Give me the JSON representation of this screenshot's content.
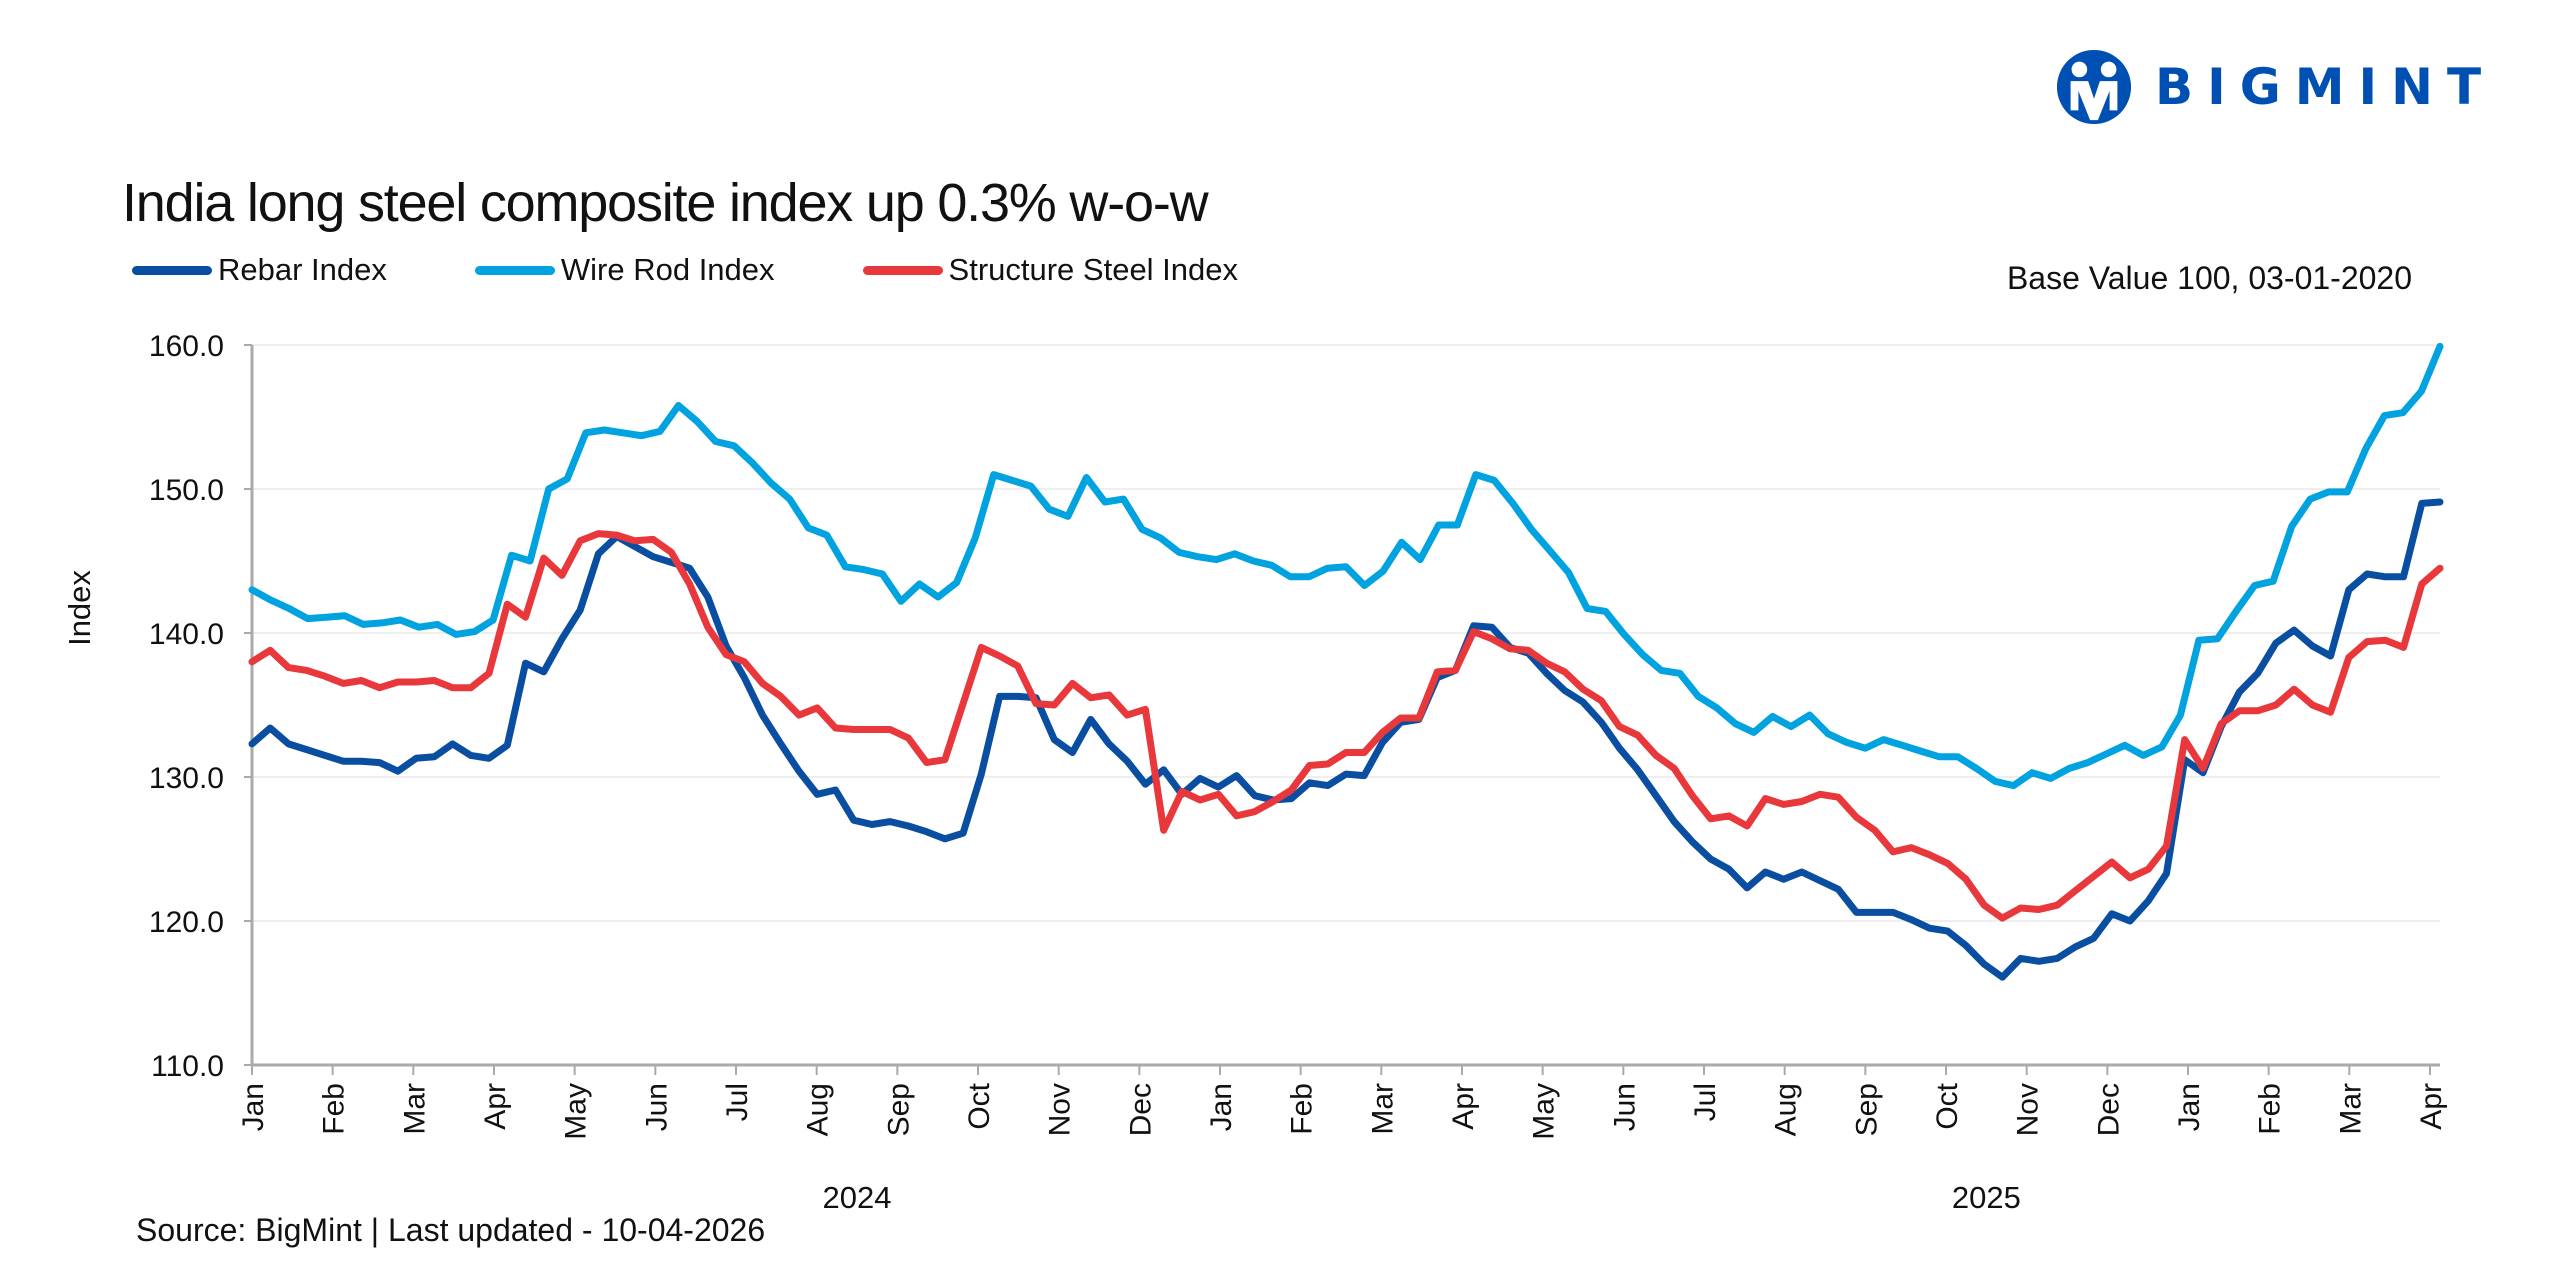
{
  "brand": {
    "name": "BIGMINT",
    "color": "#0050b3",
    "logo_icon": "bigmint-people-logo-icon"
  },
  "header": {
    "title": "India long steel composite index up 0.3% w-o-w",
    "base_note": "Base Value 100, 03-01-2020"
  },
  "footer": {
    "source": "Source: BigMint | Last updated - 10-04-2026"
  },
  "chart_data": {
    "type": "line",
    "title": "India long steel composite index up 0.3% w-o-w",
    "xlabel": "",
    "ylabel": "Index",
    "ylim": [
      110,
      160
    ],
    "yticks": [
      "110.0",
      "120.0",
      "130.0",
      "140.0",
      "150.0",
      "160.0"
    ],
    "grid": "horizontal",
    "legend_position": "top-left",
    "x_month_ticks": [
      "Jan",
      "Feb",
      "Mar",
      "Apr",
      "May",
      "Jun",
      "Jul",
      "Aug",
      "Sep",
      "Oct",
      "Nov",
      "Dec",
      "Jan",
      "Feb",
      "Mar",
      "Apr",
      "May",
      "Jun",
      "Jul",
      "Aug",
      "Sep",
      "Oct",
      "Nov",
      "Dec",
      "Jan",
      "Feb",
      "Mar",
      "Apr"
    ],
    "year_labels": [
      {
        "label": "2024",
        "month_index": 7.5
      },
      {
        "label": "2025",
        "month_index": 21.5
      }
    ],
    "x_unit": "weekly points starting first week of Jan 2024",
    "series": [
      {
        "name": "Rebar Index",
        "color": "#0a4ea2",
        "values": [
          132.3,
          133.4,
          132.3,
          131.9,
          131.5,
          131.1,
          131.1,
          131.0,
          130.4,
          131.3,
          131.4,
          132.3,
          131.5,
          131.3,
          132.2,
          137.9,
          137.3,
          139.6,
          141.6,
          145.5,
          146.7,
          146.0,
          145.3,
          144.9,
          144.5,
          142.5,
          139.1,
          136.9,
          134.3,
          132.3,
          130.4,
          128.8,
          129.1,
          127.0,
          126.7,
          126.9,
          126.6,
          126.2,
          125.7,
          126.1,
          130.2,
          135.6,
          135.6,
          135.5,
          132.6,
          131.7,
          134.0,
          132.3,
          131.1,
          129.5,
          130.5,
          128.8,
          129.9,
          129.3,
          130.1,
          128.7,
          128.4,
          128.5,
          129.6,
          129.4,
          130.2,
          130.1,
          132.4,
          133.8,
          134.0,
          136.9,
          137.4,
          140.5,
          140.4,
          139.0,
          138.6,
          137.2,
          136.0,
          135.2,
          133.8,
          132.0,
          130.5,
          128.7,
          126.9,
          125.5,
          124.3,
          123.6,
          122.3,
          123.4,
          122.9,
          123.4,
          122.8,
          122.2,
          120.6,
          120.6,
          120.6,
          120.1,
          119.5,
          119.3,
          118.3,
          117.0,
          116.1,
          117.4,
          117.2,
          117.4,
          118.2,
          118.8,
          120.5,
          120.0,
          121.4,
          123.3,
          131.2,
          130.3,
          133.5,
          135.9,
          137.2,
          139.3,
          140.2,
          139.1,
          138.4,
          143.0,
          144.1,
          143.9,
          143.9,
          149.0,
          149.1
        ]
      },
      {
        "name": "Wire Rod Index",
        "color": "#00a3e0",
        "values": [
          143.0,
          142.3,
          141.7,
          141.0,
          141.1,
          141.2,
          140.6,
          140.7,
          140.9,
          140.4,
          140.6,
          139.9,
          140.1,
          140.9,
          145.4,
          145.0,
          150.0,
          150.7,
          153.9,
          154.1,
          153.9,
          153.7,
          154.0,
          155.8,
          154.7,
          153.3,
          153.0,
          151.8,
          150.4,
          149.3,
          147.3,
          146.8,
          144.6,
          144.4,
          144.1,
          142.2,
          143.4,
          142.5,
          143.5,
          146.6,
          151.0,
          150.6,
          150.2,
          148.6,
          148.1,
          150.8,
          149.1,
          149.3,
          147.2,
          146.6,
          145.6,
          145.3,
          145.1,
          145.5,
          145.0,
          144.7,
          143.9,
          143.9,
          144.5,
          144.6,
          143.3,
          144.3,
          146.3,
          145.1,
          147.5,
          147.5,
          151.0,
          150.6,
          149.0,
          147.2,
          145.7,
          144.2,
          141.7,
          141.5,
          139.9,
          138.5,
          137.4,
          137.2,
          135.6,
          134.8,
          133.7,
          133.1,
          134.2,
          133.5,
          134.3,
          133.0,
          132.4,
          132.0,
          132.6,
          132.2,
          131.8,
          131.4,
          131.4,
          130.6,
          129.7,
          129.4,
          130.3,
          129.9,
          130.6,
          131.0,
          131.6,
          132.2,
          131.5,
          132.1,
          134.3,
          139.5,
          139.6,
          141.5,
          143.3,
          143.6,
          147.4,
          149.3,
          149.8,
          149.8,
          152.8,
          155.1,
          155.3,
          156.8,
          159.9
        ]
      },
      {
        "name": "Structure Steel Index",
        "color": "#e8383c",
        "values": [
          138.0,
          138.8,
          137.6,
          137.4,
          137.0,
          136.5,
          136.7,
          136.2,
          136.6,
          136.6,
          136.7,
          136.2,
          136.2,
          137.2,
          142.0,
          141.1,
          145.2,
          144.0,
          146.4,
          146.9,
          146.8,
          146.4,
          146.5,
          145.6,
          143.4,
          140.4,
          138.5,
          138.0,
          136.5,
          135.6,
          134.3,
          134.8,
          133.4,
          133.3,
          133.3,
          133.3,
          132.7,
          131.0,
          131.2,
          135.1,
          139.0,
          138.4,
          137.7,
          135.1,
          135.0,
          136.5,
          135.5,
          135.7,
          134.3,
          134.7,
          126.3,
          129.0,
          128.4,
          128.8,
          127.3,
          127.6,
          128.3,
          129.1,
          130.8,
          130.9,
          131.7,
          131.7,
          133.1,
          134.1,
          134.1,
          137.3,
          137.4,
          140.1,
          139.6,
          138.9,
          138.8,
          137.9,
          137.3,
          136.1,
          135.3,
          133.5,
          132.9,
          131.5,
          130.6,
          128.7,
          127.1,
          127.3,
          126.6,
          128.5,
          128.1,
          128.3,
          128.8,
          128.6,
          127.2,
          126.3,
          124.8,
          125.1,
          124.6,
          124.0,
          122.9,
          121.1,
          120.2,
          120.9,
          120.8,
          121.1,
          122.1,
          123.1,
          124.1,
          123.0,
          123.6,
          125.2,
          132.6,
          130.6,
          133.7,
          134.6,
          134.6,
          135.0,
          136.1,
          135.0,
          134.5,
          138.3,
          139.4,
          139.5,
          139.0,
          143.4,
          144.5
        ]
      }
    ]
  }
}
